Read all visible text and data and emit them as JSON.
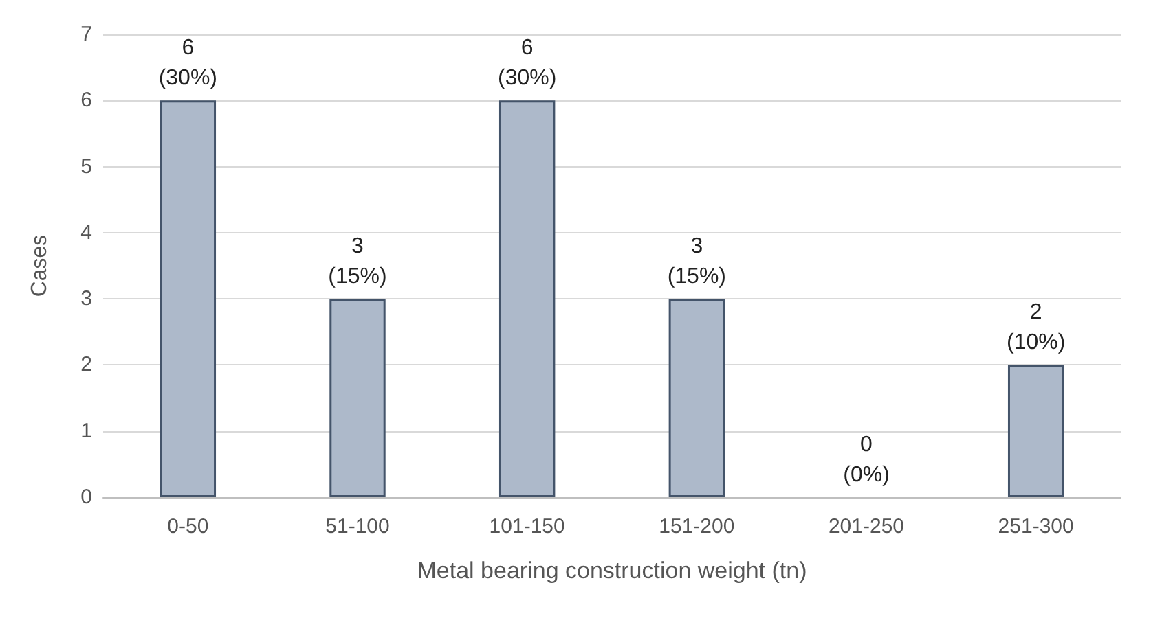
{
  "chart_data": {
    "type": "bar",
    "xlabel": "Metal bearing construction weight (tn)",
    "ylabel": "Cases",
    "categories": [
      "0-50",
      "51-100",
      "101-150",
      "151-200",
      "201-250",
      "251-300"
    ],
    "values": [
      6,
      3,
      6,
      3,
      0,
      2
    ],
    "value_labels": [
      "6\n(30%)",
      "3\n(15%)",
      "6\n(30%)",
      "3\n(15%)",
      "0\n(0%)",
      "2\n(10%)"
    ],
    "color": "#adb9ca",
    "ylim": [
      0,
      7
    ],
    "yticks": [
      0,
      1,
      2,
      3,
      4,
      5,
      6,
      7
    ],
    "grid": "y"
  }
}
